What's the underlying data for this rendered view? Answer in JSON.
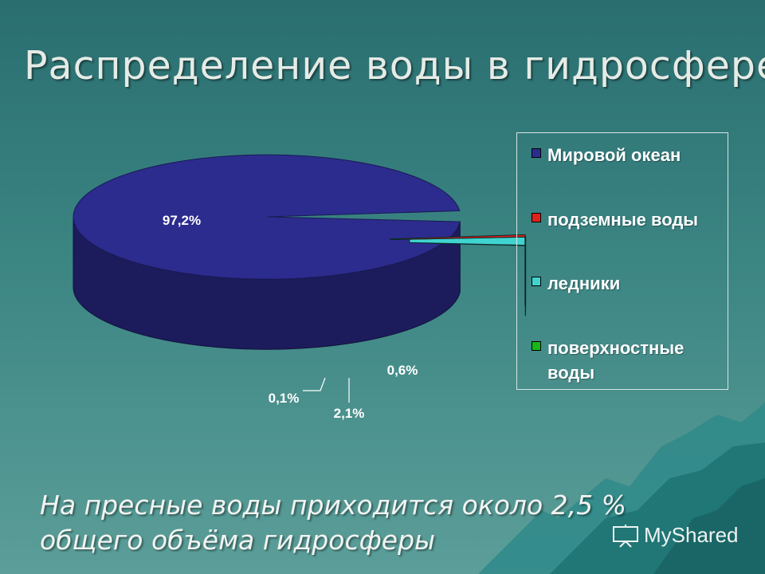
{
  "slide": {
    "title": "Распределение воды в гидросфере",
    "footer_line1": "На пресные воды приходится около 2,5 %",
    "footer_line2": "общего объёма гидросферы",
    "watermark": "MyShared"
  },
  "chart_data": {
    "type": "pie",
    "subtype": "3d-exploded",
    "legend_position": "right",
    "categories": [
      "Мировой океан",
      "подземные воды",
      "ледники",
      "поверхностные воды"
    ],
    "labels": [
      "97,2%",
      "0,6%",
      "2,1%",
      "0,1%"
    ],
    "values": [
      97.2,
      0.6,
      2.1,
      0.1
    ],
    "colors": [
      "#2c2c8e",
      "#e0201a",
      "#40d4d0",
      "#18b818"
    ],
    "side_colors": [
      "#1c1c5c",
      "#9a1008",
      "#1f6f6f",
      "#0d6e0d"
    ]
  }
}
